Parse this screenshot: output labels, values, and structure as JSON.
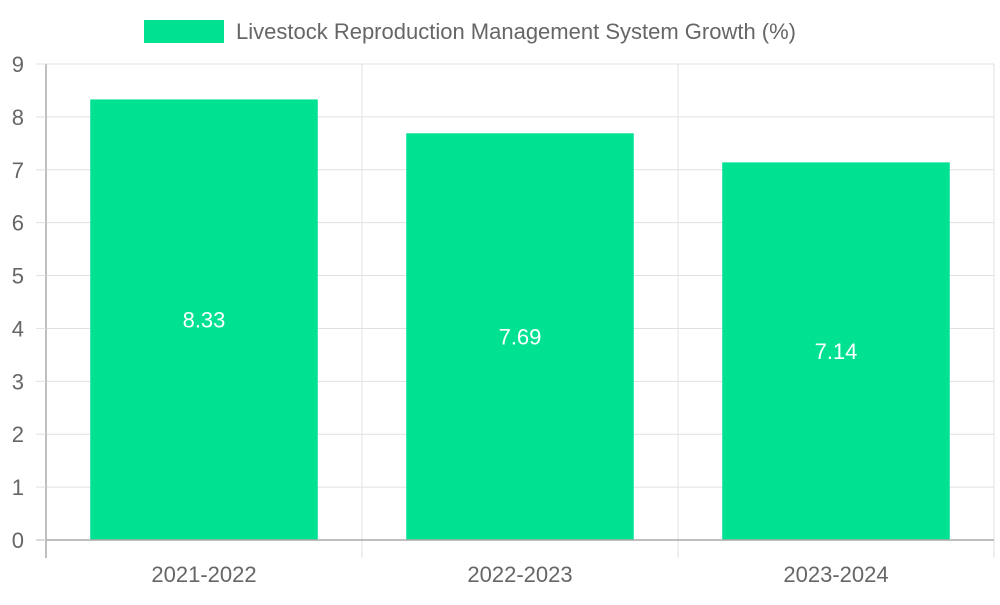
{
  "chart_data": {
    "type": "bar",
    "title": "",
    "xlabel": "",
    "ylabel": "",
    "categories": [
      "2021-2022",
      "2022-2023",
      "2023-2024"
    ],
    "series": [
      {
        "name": "Livestock Reproduction Management System Growth (%)",
        "values": [
          8.33,
          7.69,
          7.14
        ],
        "color": "#00e292"
      }
    ],
    "data_labels": [
      "8.33",
      "7.69",
      "7.14"
    ],
    "ylim": [
      0,
      9
    ],
    "yticks": [
      "0",
      "1",
      "2",
      "3",
      "4",
      "5",
      "6",
      "7",
      "8",
      "9"
    ],
    "grid": true,
    "legend_position": "top-center"
  },
  "colors": {
    "bar": "#00e292",
    "grid": "#e0e0e0",
    "axis": "#aaaaaa",
    "tick_text": "#666666",
    "data_label": "#ffffff"
  }
}
